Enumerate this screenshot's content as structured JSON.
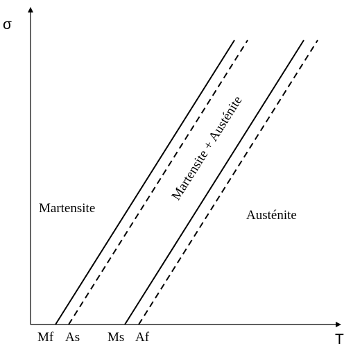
{
  "axes": {
    "y_symbol": "σ",
    "x_symbol": "T"
  },
  "regions": {
    "martensite": "Martensite",
    "mixed": "Martensite + Austénite",
    "austenite": "Austénite"
  },
  "temperatures": {
    "mf": "Mf",
    "as": "As",
    "ms": "Ms",
    "af": "Af"
  },
  "colors": {
    "ink": "#000000",
    "background": "#ffffff"
  }
}
